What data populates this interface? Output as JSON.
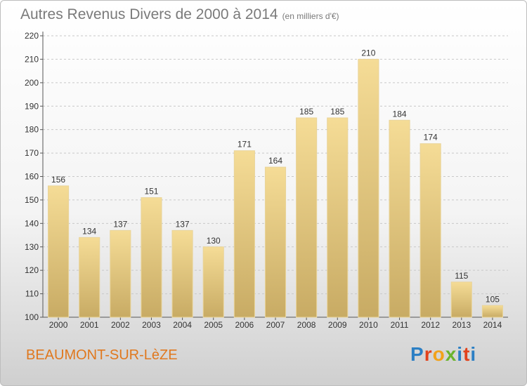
{
  "header": {
    "title": "Autres Revenus Divers de 2000 à 2014",
    "unit": "(en milliers d'€)"
  },
  "footer": {
    "city": "BEAUMONT-SUR-LèZE",
    "logo_text": "Proxiti"
  },
  "colors": {
    "bar_top": "#f5dc96",
    "bar_bottom": "#c8ab64",
    "grid": "#c8c8c8",
    "title": "#7a7a7a",
    "city": "#e0781e"
  },
  "chart_data": {
    "type": "bar",
    "title": "Autres Revenus Divers de 2000 à 2014",
    "xlabel": "",
    "ylabel": "",
    "categories": [
      "2000",
      "2001",
      "2002",
      "2003",
      "2004",
      "2005",
      "2006",
      "2007",
      "2008",
      "2009",
      "2010",
      "2011",
      "2012",
      "2013",
      "2014"
    ],
    "values": [
      156,
      134,
      137,
      151,
      137,
      130,
      171,
      164,
      185,
      185,
      210,
      184,
      174,
      115,
      105
    ],
    "ylim": [
      100,
      220
    ],
    "yticks": [
      100,
      110,
      120,
      130,
      140,
      150,
      160,
      170,
      180,
      190,
      200,
      210,
      220
    ],
    "grid": true,
    "data_labels": true
  }
}
